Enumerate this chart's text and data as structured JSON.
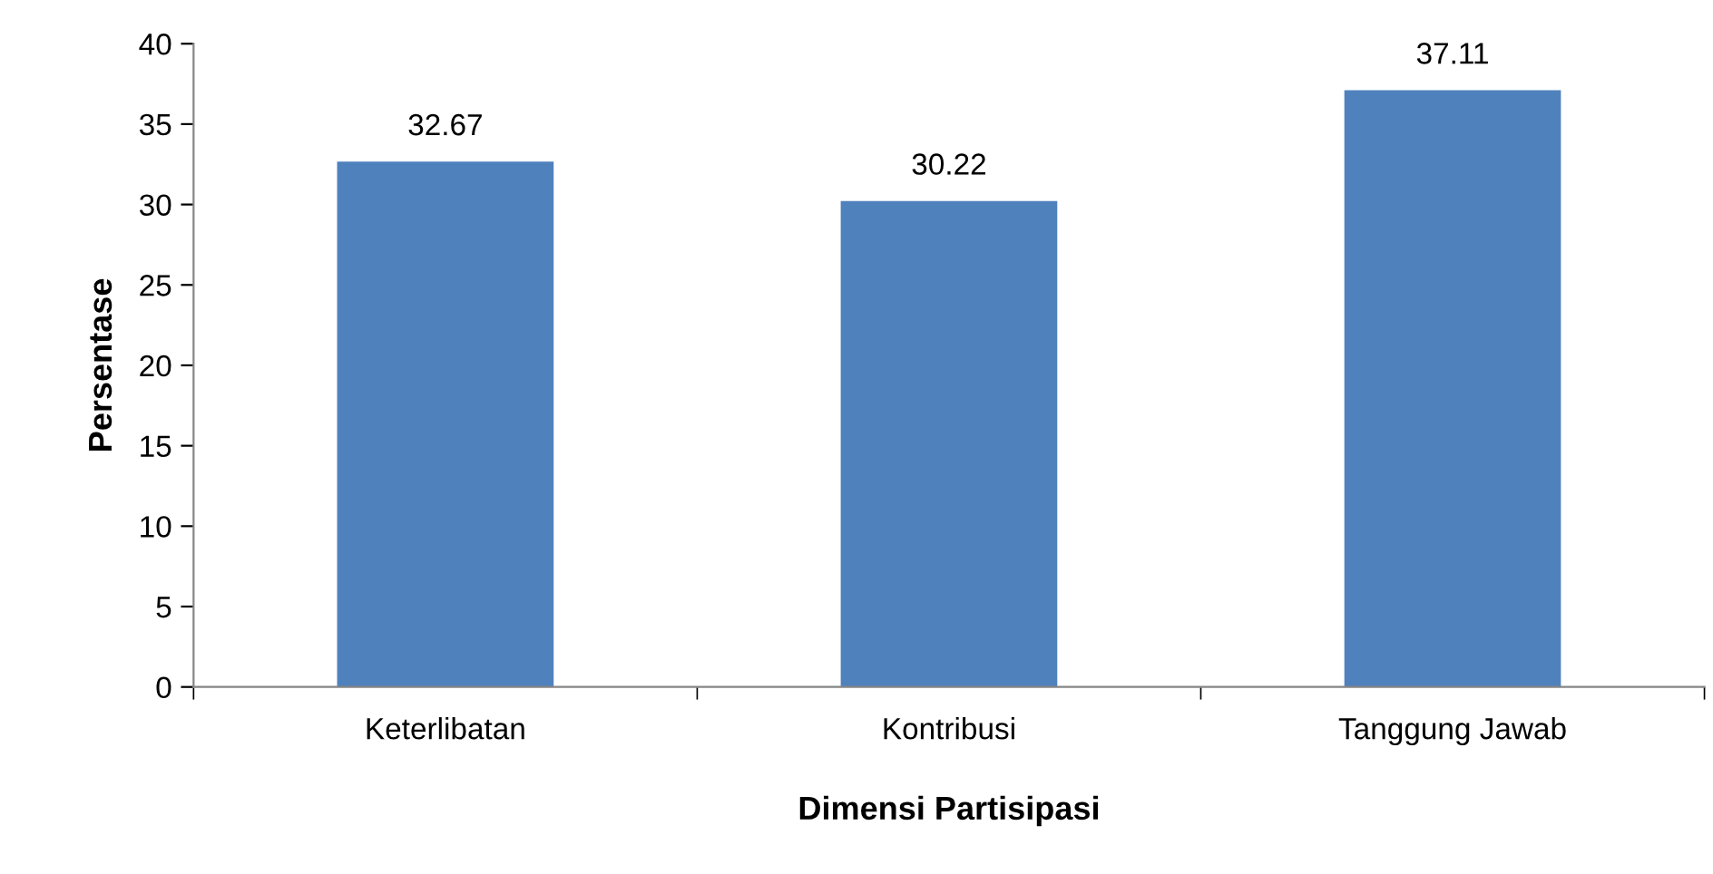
{
  "chart_data": {
    "type": "bar",
    "xlabel": "Dimensi Partisipasi",
    "ylabel": "Persentase",
    "categories": [
      "Keterlibatan",
      "Kontribusi",
      "Tanggung Jawab"
    ],
    "values": [
      32.67,
      30.22,
      37.11
    ],
    "color": "#4f81bd",
    "ylim": [
      0,
      40
    ],
    "yticks": [
      0,
      5,
      10,
      15,
      20,
      25,
      30,
      35,
      40
    ],
    "grid": false,
    "data_labels": true
  }
}
